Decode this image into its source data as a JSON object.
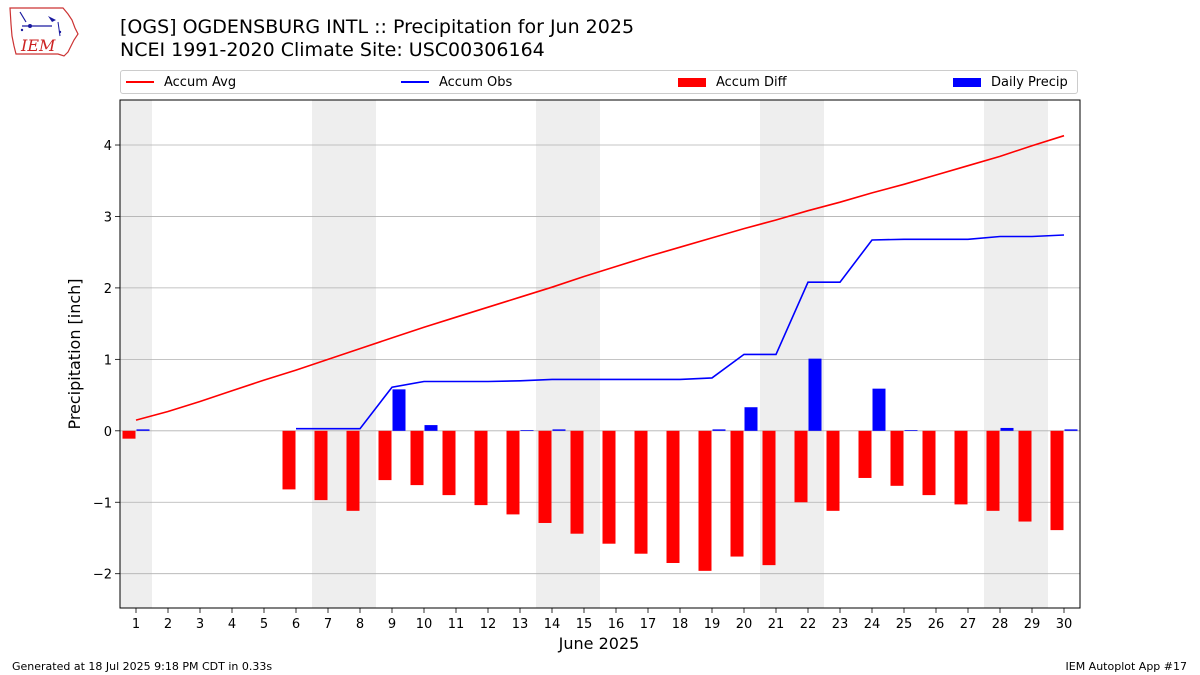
{
  "header": {
    "title_line1": "[OGS] OGDENSBURG INTL :: Precipitation for Jun 2025",
    "title_line2": "NCEI 1991-2020 Climate Site: USC00306164"
  },
  "logo": {
    "text": "IEM"
  },
  "footer": {
    "left": "Generated at 18 Jul 2025 9:18 PM CDT in 0.33s",
    "right": "IEM Autoplot App #17"
  },
  "legend": {
    "placement": "top, above plot, spanning width",
    "items": [
      {
        "label": "Accum Avg",
        "kind": "line",
        "color": "#ff0000"
      },
      {
        "label": "Accum Obs",
        "kind": "line",
        "color": "#0000ff"
      },
      {
        "label": "Accum Diff",
        "kind": "bar",
        "color": "#ff0000"
      },
      {
        "label": "Daily Precip",
        "kind": "bar",
        "color": "#0000ff"
      }
    ]
  },
  "colors": {
    "avg": "#ff0000",
    "obs": "#0000ff",
    "diff": "#ff0000",
    "daily": "#0000ff",
    "weekend_shade": "#eeeeee",
    "grid": "#b0b0b0"
  },
  "chart_data": {
    "type": "bar",
    "xlabel": "June 2025",
    "ylabel": "Precipitation [inch]",
    "ylim": [
      -2.48,
      4.63
    ],
    "yticks": [
      -2,
      -1,
      0,
      1,
      2,
      3,
      4
    ],
    "ytick_labels": [
      "−2",
      "−1",
      "0",
      "1",
      "2",
      "3",
      "4"
    ],
    "grid": "horizontal",
    "x": [
      1,
      2,
      3,
      4,
      5,
      6,
      7,
      8,
      9,
      10,
      11,
      12,
      13,
      14,
      15,
      16,
      17,
      18,
      19,
      20,
      21,
      22,
      23,
      24,
      25,
      26,
      27,
      28,
      29,
      30
    ],
    "weekend_days": [
      1,
      7,
      8,
      14,
      15,
      21,
      22,
      28,
      29
    ],
    "series": [
      {
        "name": "Accum Avg",
        "kind": "line",
        "values": [
          0.15,
          0.27,
          0.41,
          0.56,
          0.71,
          0.85,
          1.0,
          1.15,
          1.3,
          1.45,
          1.59,
          1.73,
          1.87,
          2.01,
          2.16,
          2.3,
          2.44,
          2.57,
          2.7,
          2.83,
          2.95,
          3.08,
          3.2,
          3.33,
          3.45,
          3.58,
          3.71,
          3.84,
          3.99,
          4.13
        ]
      },
      {
        "name": "Accum Obs",
        "kind": "line",
        "values": [
          null,
          null,
          null,
          null,
          null,
          0.03,
          0.03,
          0.03,
          0.61,
          0.69,
          0.69,
          0.69,
          0.7,
          0.72,
          0.72,
          0.72,
          0.72,
          0.72,
          0.74,
          1.07,
          1.07,
          2.08,
          2.08,
          2.67,
          2.68,
          2.68,
          2.68,
          2.72,
          2.72,
          2.74
        ]
      },
      {
        "name": "Accum Diff",
        "kind": "bar",
        "values": [
          -0.11,
          null,
          null,
          null,
          null,
          -0.82,
          -0.97,
          -1.12,
          -0.69,
          -0.76,
          -0.9,
          -1.04,
          -1.17,
          -1.29,
          -1.44,
          -1.58,
          -1.72,
          -1.85,
          -1.96,
          -1.76,
          -1.88,
          -1.0,
          -1.12,
          -0.66,
          -0.77,
          -0.9,
          -1.03,
          -1.12,
          -1.27,
          -1.39
        ]
      },
      {
        "name": "Daily Precip",
        "kind": "bar",
        "values": [
          0.02,
          0,
          0,
          0,
          0,
          0,
          0,
          0,
          0.58,
          0.08,
          0,
          0,
          0.01,
          0.02,
          0,
          0,
          0,
          0,
          0.02,
          0.33,
          0,
          1.01,
          0,
          0.59,
          0.01,
          0,
          0,
          0.04,
          0,
          0.02
        ]
      }
    ]
  }
}
